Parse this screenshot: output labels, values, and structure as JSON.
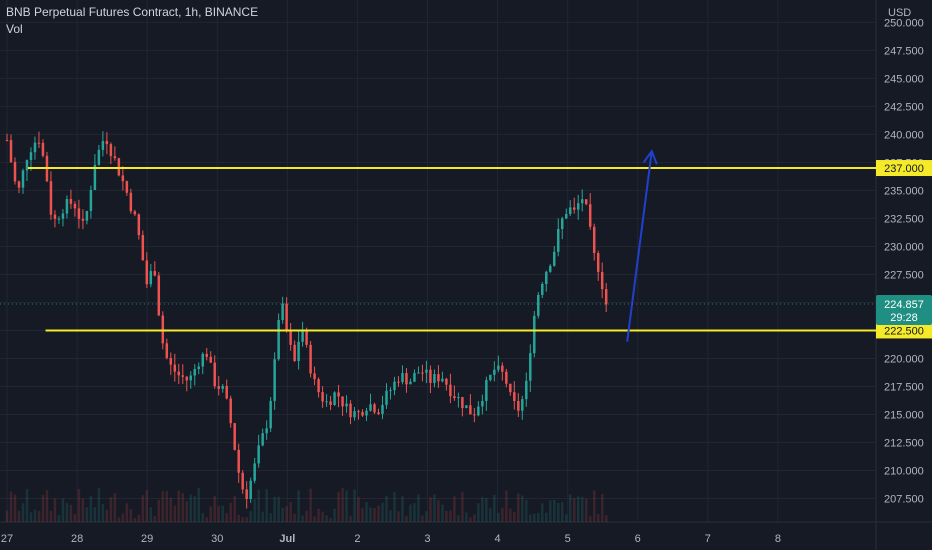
{
  "header": {
    "title": "BNB Perpetual Futures Contract, 1h, BINANCE",
    "volume_label": "Vol"
  },
  "colors": {
    "background": "#161a25",
    "grid": "#222633",
    "up": "#26a69a",
    "down": "#ef5350",
    "level_line": "#f4ea2a",
    "arrow": "#2040d0",
    "axis_text": "#b2b5be",
    "price_tag": "#1f8f83"
  },
  "chart_data": {
    "type": "candlestick",
    "currency": "USD",
    "y_ticks": [
      "207.500",
      "210.000",
      "212.500",
      "215.000",
      "217.500",
      "220.000",
      "222.500",
      "225.000",
      "227.500",
      "230.000",
      "232.500",
      "235.000",
      "237.500",
      "240.000",
      "242.500",
      "245.000",
      "247.500",
      "250.000"
    ],
    "ylim": [
      205.4,
      252.0
    ],
    "x_ticks": [
      "27",
      "28",
      "29",
      "30",
      "Jul",
      "2",
      "3",
      "4",
      "5",
      "6",
      "7",
      "8"
    ],
    "x_tick_days": [
      27,
      28,
      29,
      30,
      31,
      32,
      33,
      34,
      35,
      36,
      37,
      38
    ],
    "xlim": [
      26.9,
      39.4
    ],
    "levels": [
      {
        "price": 237.0,
        "label": "237.000",
        "from_day": 27.3
      },
      {
        "price": 222.5,
        "label": "222.500",
        "from_day": 27.55
      }
    ],
    "current_price": {
      "price": 224.857,
      "label": "224.857",
      "countdown": "29:28"
    },
    "arrow": {
      "from": [
        35.85,
        221.5
      ],
      "to": [
        36.2,
        238.5
      ]
    },
    "series": [
      {
        "day": 27.0,
        "price": 239.5
      },
      {
        "day": 27.15,
        "price": 234.5
      },
      {
        "day": 27.3,
        "price": 238.5
      },
      {
        "day": 27.45,
        "price": 239.8
      },
      {
        "day": 27.55,
        "price": 237.0
      },
      {
        "day": 27.65,
        "price": 232.0
      },
      {
        "day": 27.8,
        "price": 233.5
      },
      {
        "day": 27.95,
        "price": 234.0
      },
      {
        "day": 28.1,
        "price": 231.5
      },
      {
        "day": 28.25,
        "price": 237.5
      },
      {
        "day": 28.4,
        "price": 240.0
      },
      {
        "day": 28.55,
        "price": 237.5
      },
      {
        "day": 28.7,
        "price": 235.0
      },
      {
        "day": 28.85,
        "price": 232.0
      },
      {
        "day": 29.0,
        "price": 226.5
      },
      {
        "day": 29.1,
        "price": 228.5
      },
      {
        "day": 29.2,
        "price": 222.0
      },
      {
        "day": 29.3,
        "price": 219.5
      },
      {
        "day": 29.45,
        "price": 218.5
      },
      {
        "day": 29.6,
        "price": 218.0
      },
      {
        "day": 29.75,
        "price": 220.0
      },
      {
        "day": 29.85,
        "price": 220.5
      },
      {
        "day": 29.95,
        "price": 218.0
      },
      {
        "day": 30.1,
        "price": 217.0
      },
      {
        "day": 30.2,
        "price": 214.0
      },
      {
        "day": 30.3,
        "price": 210.0
      },
      {
        "day": 30.4,
        "price": 207.5
      },
      {
        "day": 30.5,
        "price": 209.5
      },
      {
        "day": 30.6,
        "price": 212.0
      },
      {
        "day": 30.7,
        "price": 214.0
      },
      {
        "day": 30.8,
        "price": 218.0
      },
      {
        "day": 30.9,
        "price": 225.5
      },
      {
        "day": 31.0,
        "price": 222.0
      },
      {
        "day": 31.1,
        "price": 219.5
      },
      {
        "day": 31.2,
        "price": 223.0
      },
      {
        "day": 31.3,
        "price": 220.0
      },
      {
        "day": 31.4,
        "price": 217.5
      },
      {
        "day": 31.55,
        "price": 216.0
      },
      {
        "day": 31.7,
        "price": 217.0
      },
      {
        "day": 31.85,
        "price": 215.5
      },
      {
        "day": 32.0,
        "price": 215.0
      },
      {
        "day": 32.15,
        "price": 216.0
      },
      {
        "day": 32.3,
        "price": 215.5
      },
      {
        "day": 32.45,
        "price": 217.0
      },
      {
        "day": 32.6,
        "price": 218.5
      },
      {
        "day": 32.75,
        "price": 218.0
      },
      {
        "day": 32.9,
        "price": 219.0
      },
      {
        "day": 33.05,
        "price": 218.0
      },
      {
        "day": 33.2,
        "price": 218.5
      },
      {
        "day": 33.35,
        "price": 217.0
      },
      {
        "day": 33.5,
        "price": 216.0
      },
      {
        "day": 33.65,
        "price": 215.0
      },
      {
        "day": 33.8,
        "price": 217.0
      },
      {
        "day": 33.95,
        "price": 219.0
      },
      {
        "day": 34.1,
        "price": 218.5
      },
      {
        "day": 34.2,
        "price": 216.0
      },
      {
        "day": 34.3,
        "price": 215.5
      },
      {
        "day": 34.4,
        "price": 217.0
      },
      {
        "day": 34.5,
        "price": 223.0
      },
      {
        "day": 34.6,
        "price": 226.5
      },
      {
        "day": 34.7,
        "price": 228.0
      },
      {
        "day": 34.8,
        "price": 229.5
      },
      {
        "day": 34.9,
        "price": 232.0
      },
      {
        "day": 35.0,
        "price": 233.5
      },
      {
        "day": 35.1,
        "price": 233.0
      },
      {
        "day": 35.2,
        "price": 234.5
      },
      {
        "day": 35.3,
        "price": 232.5
      },
      {
        "day": 35.35,
        "price": 229.5
      },
      {
        "day": 35.45,
        "price": 228.0
      },
      {
        "day": 35.55,
        "price": 224.857
      }
    ]
  }
}
